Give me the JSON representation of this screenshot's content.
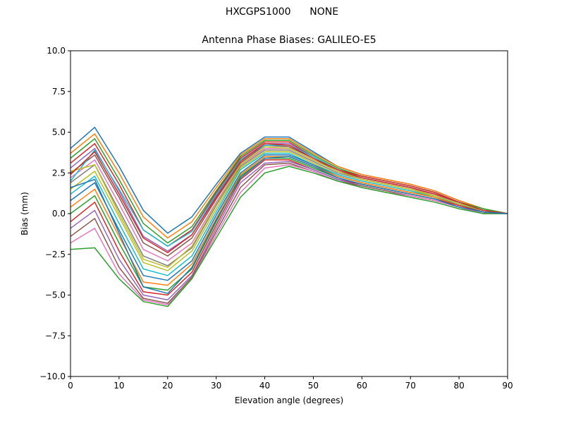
{
  "header": {
    "station": "HXCGPS1000",
    "radome": "NONE"
  },
  "chart_data": {
    "type": "line",
    "title": "Antenna Phase Biases: GALILEO-E5",
    "xlabel": "Elevation angle (degrees)",
    "ylabel": "Bias (mm)",
    "xlim": [
      0,
      90
    ],
    "ylim": [
      -10,
      10
    ],
    "xticks": [
      "0",
      "10",
      "20",
      "30",
      "40",
      "50",
      "60",
      "70",
      "80",
      "90"
    ],
    "yticks": [
      "10.0",
      "7.5",
      "5.0",
      "2.5",
      "0.0",
      "−2.5",
      "−5.0",
      "−7.5",
      "−10.0"
    ],
    "grid": false,
    "legend": "none",
    "x": [
      0,
      5,
      10,
      15,
      20,
      25,
      30,
      35,
      40,
      45,
      50,
      55,
      60,
      65,
      70,
      75,
      80,
      85,
      90
    ],
    "series": [
      {
        "color": "#1f77b4",
        "values": [
          4.0,
          5.3,
          2.9,
          0.2,
          -1.2,
          -0.2,
          1.8,
          3.7,
          4.7,
          4.7,
          3.8,
          2.9,
          2.4,
          2.1,
          1.8,
          1.4,
          0.8,
          0.3,
          0.0
        ]
      },
      {
        "color": "#ff7f0e",
        "values": [
          3.7,
          4.9,
          2.5,
          -0.2,
          -1.5,
          -0.5,
          1.6,
          3.6,
          4.6,
          4.6,
          3.7,
          2.9,
          2.4,
          2.1,
          1.8,
          1.4,
          0.8,
          0.3,
          0.0
        ]
      },
      {
        "color": "#2ca02c",
        "values": [
          3.4,
          4.6,
          2.1,
          -0.6,
          -1.8,
          -0.8,
          1.4,
          3.5,
          4.5,
          4.5,
          3.6,
          2.8,
          2.3,
          2.0,
          1.7,
          1.3,
          0.7,
          0.3,
          0.0
        ]
      },
      {
        "color": "#d62728",
        "values": [
          3.1,
          4.3,
          1.8,
          -1.0,
          -2.0,
          -1.0,
          1.3,
          3.4,
          4.4,
          4.4,
          3.5,
          2.7,
          2.3,
          2.0,
          1.7,
          1.3,
          0.7,
          0.2,
          0.0
        ]
      },
      {
        "color": "#9467bd",
        "values": [
          2.8,
          4.0,
          1.4,
          -1.4,
          -2.3,
          -1.3,
          1.1,
          3.3,
          4.3,
          4.3,
          3.5,
          2.7,
          2.2,
          1.9,
          1.6,
          1.2,
          0.7,
          0.2,
          0.0
        ]
      },
      {
        "color": "#8c564b",
        "values": [
          2.5,
          3.6,
          1.0,
          -1.8,
          -2.6,
          -1.5,
          0.9,
          3.1,
          4.2,
          4.1,
          3.4,
          2.6,
          2.2,
          1.9,
          1.6,
          1.2,
          0.7,
          0.2,
          0.0
        ]
      },
      {
        "color": "#e377c2",
        "values": [
          2.2,
          3.3,
          0.6,
          -2.2,
          -2.9,
          -1.8,
          0.7,
          3.0,
          4.0,
          4.0,
          3.3,
          2.6,
          2.1,
          1.8,
          1.5,
          1.2,
          0.6,
          0.2,
          0.0
        ]
      },
      {
        "color": "#7f7f7f",
        "values": [
          1.9,
          3.0,
          0.2,
          -2.6,
          -3.2,
          -2.1,
          0.5,
          2.9,
          3.9,
          3.9,
          3.2,
          2.5,
          2.1,
          1.8,
          1.5,
          1.1,
          0.6,
          0.2,
          0.0
        ]
      },
      {
        "color": "#bcbd22",
        "values": [
          1.5,
          2.6,
          -0.2,
          -3.0,
          -3.5,
          -2.3,
          0.3,
          2.8,
          3.8,
          3.8,
          3.1,
          2.4,
          2.0,
          1.7,
          1.4,
          1.1,
          0.6,
          0.2,
          0.0
        ]
      },
      {
        "color": "#17becf",
        "values": [
          1.2,
          2.3,
          -0.6,
          -3.4,
          -3.8,
          -2.6,
          0.1,
          2.7,
          3.7,
          3.7,
          3.0,
          2.4,
          2.0,
          1.7,
          1.4,
          1.0,
          0.6,
          0.1,
          0.0
        ]
      },
      {
        "color": "#1f77b4",
        "values": [
          0.8,
          1.9,
          -1.0,
          -3.8,
          -4.1,
          -2.9,
          -0.1,
          2.5,
          3.6,
          3.6,
          3.0,
          2.3,
          1.9,
          1.6,
          1.3,
          1.0,
          0.5,
          0.1,
          0.0
        ]
      },
      {
        "color": "#ff7f0e",
        "values": [
          0.4,
          1.5,
          -1.4,
          -4.2,
          -4.4,
          -3.1,
          -0.3,
          2.4,
          3.5,
          3.5,
          2.9,
          2.3,
          1.9,
          1.6,
          1.3,
          1.0,
          0.5,
          0.1,
          0.0
        ]
      },
      {
        "color": "#2ca02c",
        "values": [
          0.0,
          1.1,
          -1.8,
          -4.5,
          -4.7,
          -3.4,
          -0.5,
          2.3,
          3.4,
          3.4,
          2.8,
          2.2,
          1.8,
          1.5,
          1.2,
          0.9,
          0.5,
          0.1,
          0.0
        ]
      },
      {
        "color": "#d62728",
        "values": [
          -0.5,
          0.7,
          -2.3,
          -4.8,
          -5.0,
          -3.6,
          -0.7,
          2.1,
          3.3,
          3.3,
          2.7,
          2.1,
          1.8,
          1.5,
          1.2,
          0.9,
          0.5,
          0.1,
          0.0
        ]
      },
      {
        "color": "#9467bd",
        "values": [
          -0.9,
          0.2,
          -2.8,
          -5.0,
          -5.3,
          -3.8,
          -0.9,
          1.9,
          3.1,
          3.2,
          2.7,
          2.1,
          1.7,
          1.4,
          1.1,
          0.8,
          0.4,
          0.1,
          0.0
        ]
      },
      {
        "color": "#8c564b",
        "values": [
          -1.4,
          -0.3,
          -3.3,
          -5.2,
          -5.5,
          -3.9,
          -1.1,
          1.6,
          3.0,
          3.1,
          2.6,
          2.0,
          1.7,
          1.4,
          1.1,
          0.8,
          0.4,
          0.0,
          0.0
        ]
      },
      {
        "color": "#e377c2",
        "values": [
          -1.8,
          -0.9,
          -3.7,
          -5.3,
          -5.6,
          -4.0,
          -1.3,
          1.3,
          2.8,
          3.0,
          2.6,
          2.0,
          1.6,
          1.3,
          1.1,
          0.8,
          0.4,
          0.0,
          0.0
        ]
      },
      {
        "color": "#2ca02c",
        "values": [
          -2.2,
          -2.1,
          -4.0,
          -5.4,
          -5.7,
          -4.0,
          -1.5,
          1.0,
          2.5,
          2.9,
          2.5,
          2.0,
          1.6,
          1.3,
          1.0,
          0.7,
          0.3,
          0.0,
          0.0
        ]
      },
      {
        "color": "#17becf",
        "values": [
          2.0,
          3.9,
          1.5,
          -1.0,
          -2.0,
          -1.1,
          1.2,
          3.3,
          4.2,
          4.2,
          3.5,
          2.7,
          2.2,
          1.9,
          1.6,
          1.2,
          0.7,
          0.2,
          0.0
        ]
      },
      {
        "color": "#bcbd22",
        "values": [
          2.6,
          3.0,
          0.0,
          -2.8,
          -3.3,
          -2.0,
          0.6,
          3.0,
          4.1,
          4.0,
          3.3,
          2.6,
          2.1,
          1.8,
          1.5,
          1.1,
          0.6,
          0.2,
          0.0
        ]
      },
      {
        "color": "#d62728",
        "values": [
          2.4,
          3.8,
          1.2,
          -1.5,
          -2.4,
          -1.3,
          1.0,
          3.2,
          4.3,
          4.2,
          3.4,
          2.7,
          2.2,
          1.9,
          1.6,
          1.2,
          0.7,
          0.2,
          0.0
        ]
      },
      {
        "color": "#1f77b4",
        "values": [
          1.6,
          2.1,
          -1.2,
          -4.5,
          -4.9,
          -3.3,
          -0.4,
          2.2,
          3.4,
          3.5,
          2.9,
          2.2,
          1.8,
          1.5,
          1.2,
          0.9,
          0.4,
          0.1,
          0.0
        ]
      }
    ]
  }
}
